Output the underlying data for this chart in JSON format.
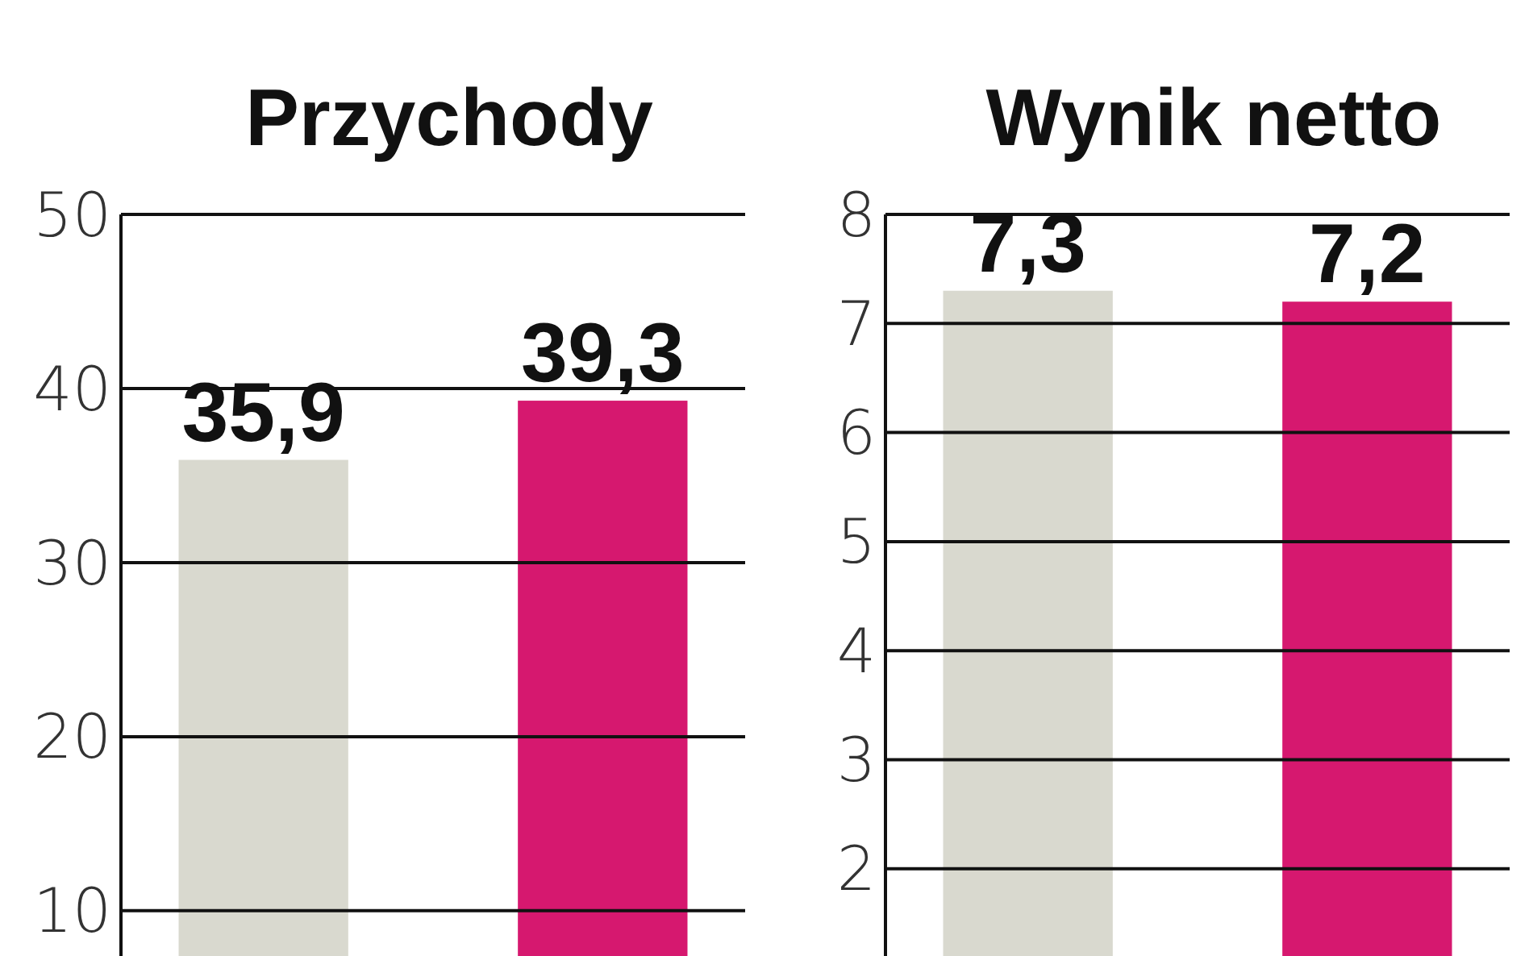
{
  "chart_data": [
    {
      "type": "bar",
      "title": "Przychody",
      "categories": [
        null,
        null
      ],
      "colors": [
        "#d9d9cf",
        "#d6186f"
      ],
      "values": [
        35.9,
        39.3
      ],
      "value_labels": [
        "35,9",
        "39,3"
      ],
      "ylim": [
        7.4,
        50
      ],
      "yticks": [
        10,
        20,
        30,
        40,
        50
      ],
      "grid": "y"
    },
    {
      "type": "bar",
      "title": "Wynik netto",
      "categories": [
        null,
        null
      ],
      "colors": [
        "#d9d9cf",
        "#d6186f"
      ],
      "values": [
        7.3,
        7.2
      ],
      "value_labels": [
        "7,3",
        "7,2"
      ],
      "ylim": [
        1.2,
        8
      ],
      "yticks": [
        2,
        3,
        4,
        5,
        6,
        7,
        8
      ],
      "grid": "y"
    }
  ]
}
